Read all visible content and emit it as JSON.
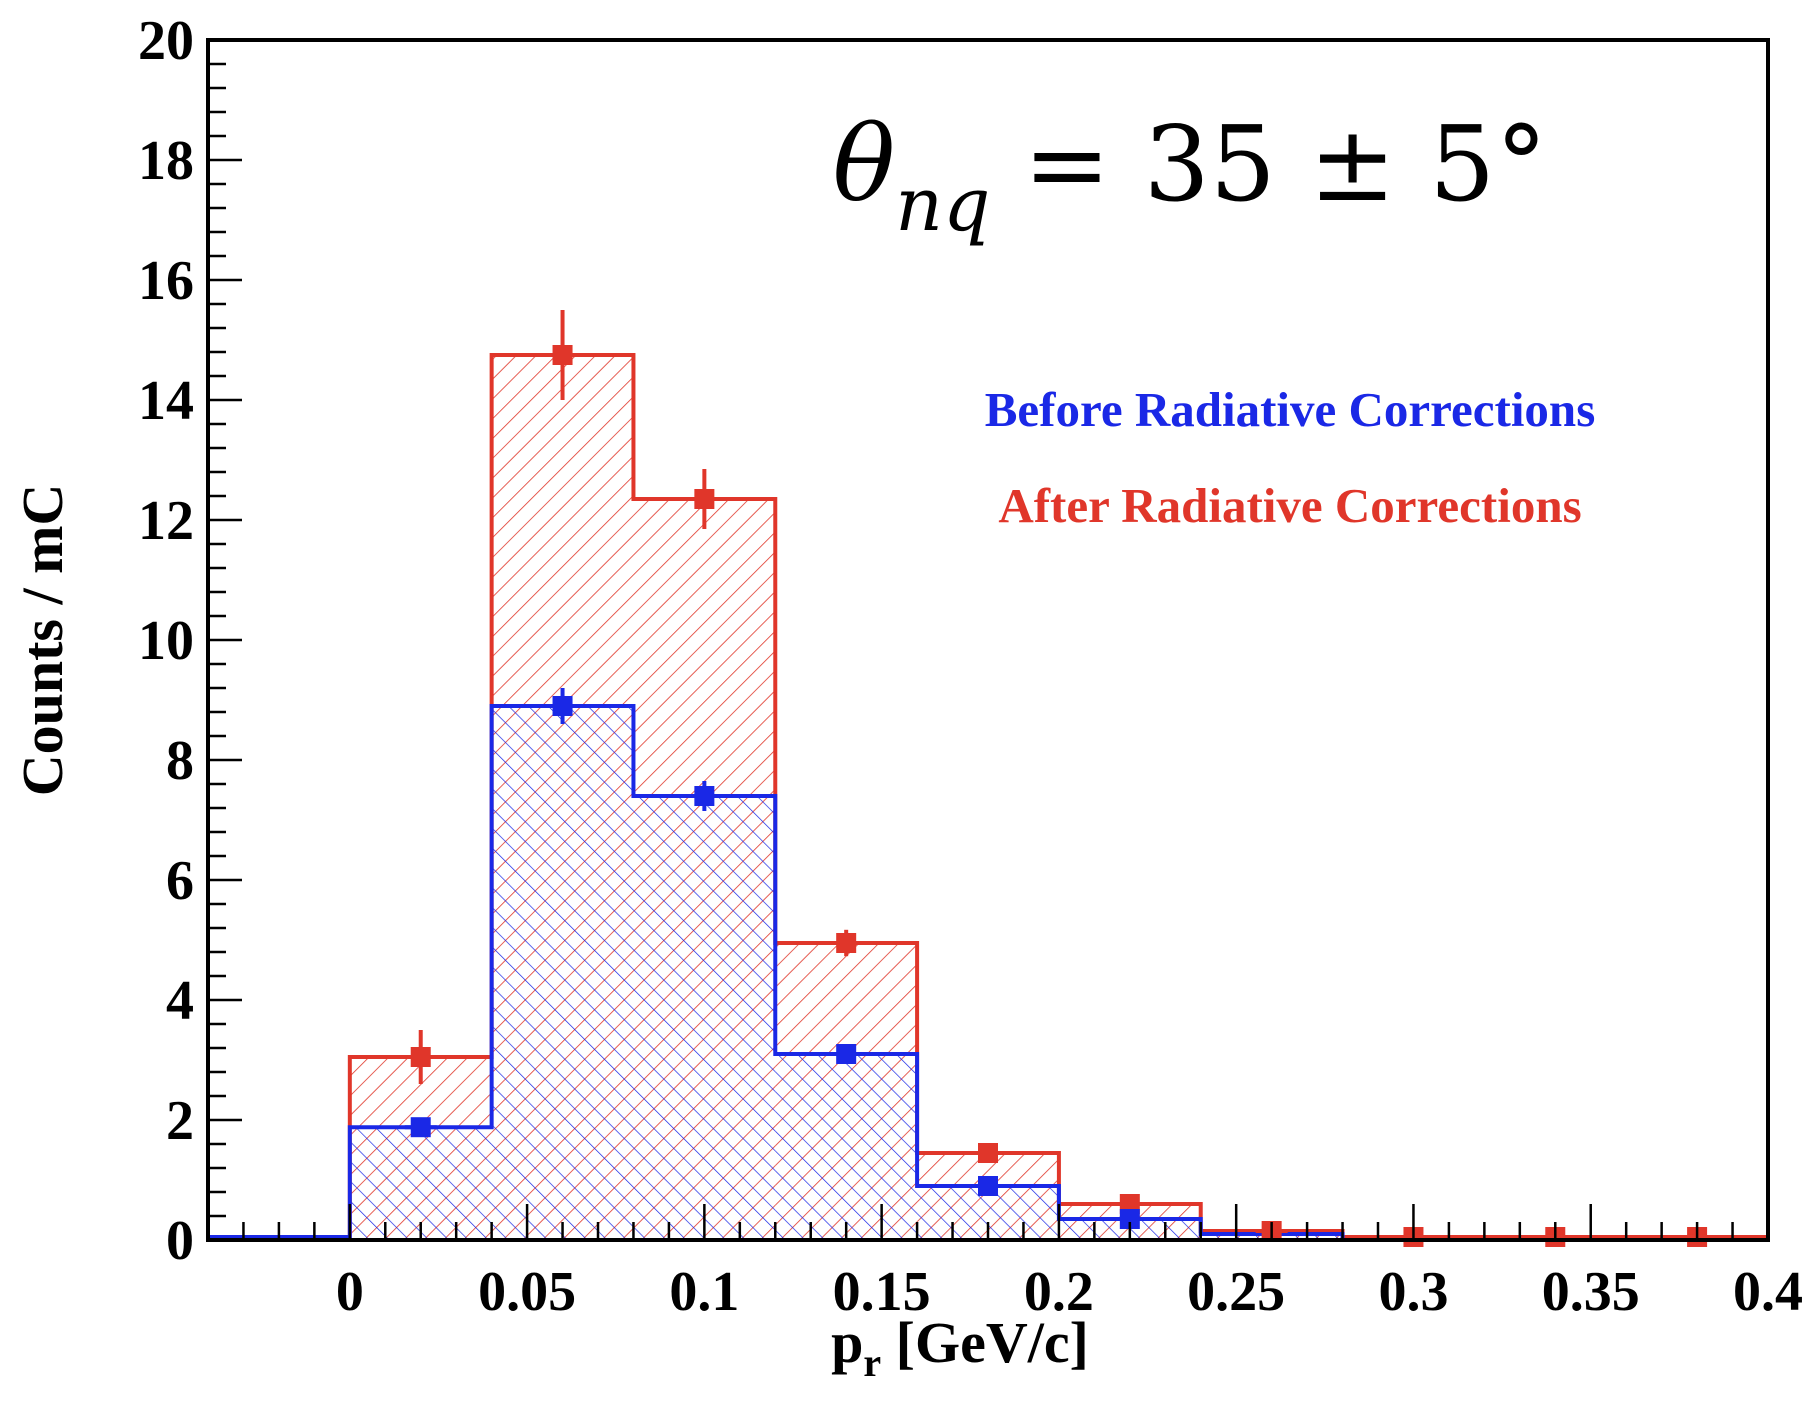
{
  "chart_data": {
    "type": "bar",
    "title": "",
    "xlabel": "p",
    "xlabel_subscript": "r",
    "xlabel_units": " [GeV/c]",
    "ylabel": "Counts / mC",
    "xlim": [
      -0.04,
      0.4
    ],
    "ylim": [
      0,
      20
    ],
    "xticks": [
      "0",
      "0.05",
      "0.1",
      "0.15",
      "0.2",
      "0.25",
      "0.3",
      "0.35",
      "0.4"
    ],
    "yticks": [
      "0",
      "2",
      "4",
      "6",
      "8",
      "10",
      "12",
      "14",
      "16",
      "18",
      "20"
    ],
    "annotation": {
      "symbol": "θ",
      "subscript": "nq",
      "rest": " = 35 ± 5°"
    },
    "bin_edges": [
      -0.04,
      0.0,
      0.04,
      0.08,
      0.12,
      0.16,
      0.2,
      0.24,
      0.28,
      0.32,
      0.36,
      0.4
    ],
    "series": [
      {
        "name": "Before Radiative Corrections",
        "color": "#1a28e6",
        "values": [
          0.05,
          1.88,
          8.9,
          7.4,
          3.1,
          0.9,
          0.35,
          0.1,
          0.0,
          0.0,
          0.0
        ],
        "points": [
          {
            "x": 0.02,
            "y": 1.88,
            "err": 0.15
          },
          {
            "x": 0.06,
            "y": 8.9,
            "err": 0.3
          },
          {
            "x": 0.1,
            "y": 7.4,
            "err": 0.25
          },
          {
            "x": 0.14,
            "y": 3.1,
            "err": 0.12
          },
          {
            "x": 0.18,
            "y": 0.9,
            "err": 0.08
          },
          {
            "x": 0.22,
            "y": 0.35,
            "err": 0.05
          }
        ]
      },
      {
        "name": "After Radiative Corrections",
        "color": "#e0362a",
        "values": [
          0.0,
          3.05,
          14.75,
          12.35,
          4.95,
          1.45,
          0.6,
          0.15,
          0.05,
          0.05,
          0.05
        ],
        "points": [
          {
            "x": 0.02,
            "y": 3.05,
            "err": 0.45
          },
          {
            "x": 0.06,
            "y": 14.75,
            "err": 0.75
          },
          {
            "x": 0.1,
            "y": 12.35,
            "err": 0.5
          },
          {
            "x": 0.14,
            "y": 4.95,
            "err": 0.22
          },
          {
            "x": 0.18,
            "y": 1.45,
            "err": 0.08
          },
          {
            "x": 0.22,
            "y": 0.6,
            "err": 0.06
          },
          {
            "x": 0.26,
            "y": 0.15,
            "err": 0.03
          },
          {
            "x": 0.3,
            "y": 0.05,
            "err": 0.02
          },
          {
            "x": 0.34,
            "y": 0.05,
            "err": 0.02
          },
          {
            "x": 0.38,
            "y": 0.05,
            "err": 0.02
          }
        ]
      }
    ],
    "legend": [
      "Before Radiative Corrections",
      "After Radiative Corrections"
    ]
  }
}
